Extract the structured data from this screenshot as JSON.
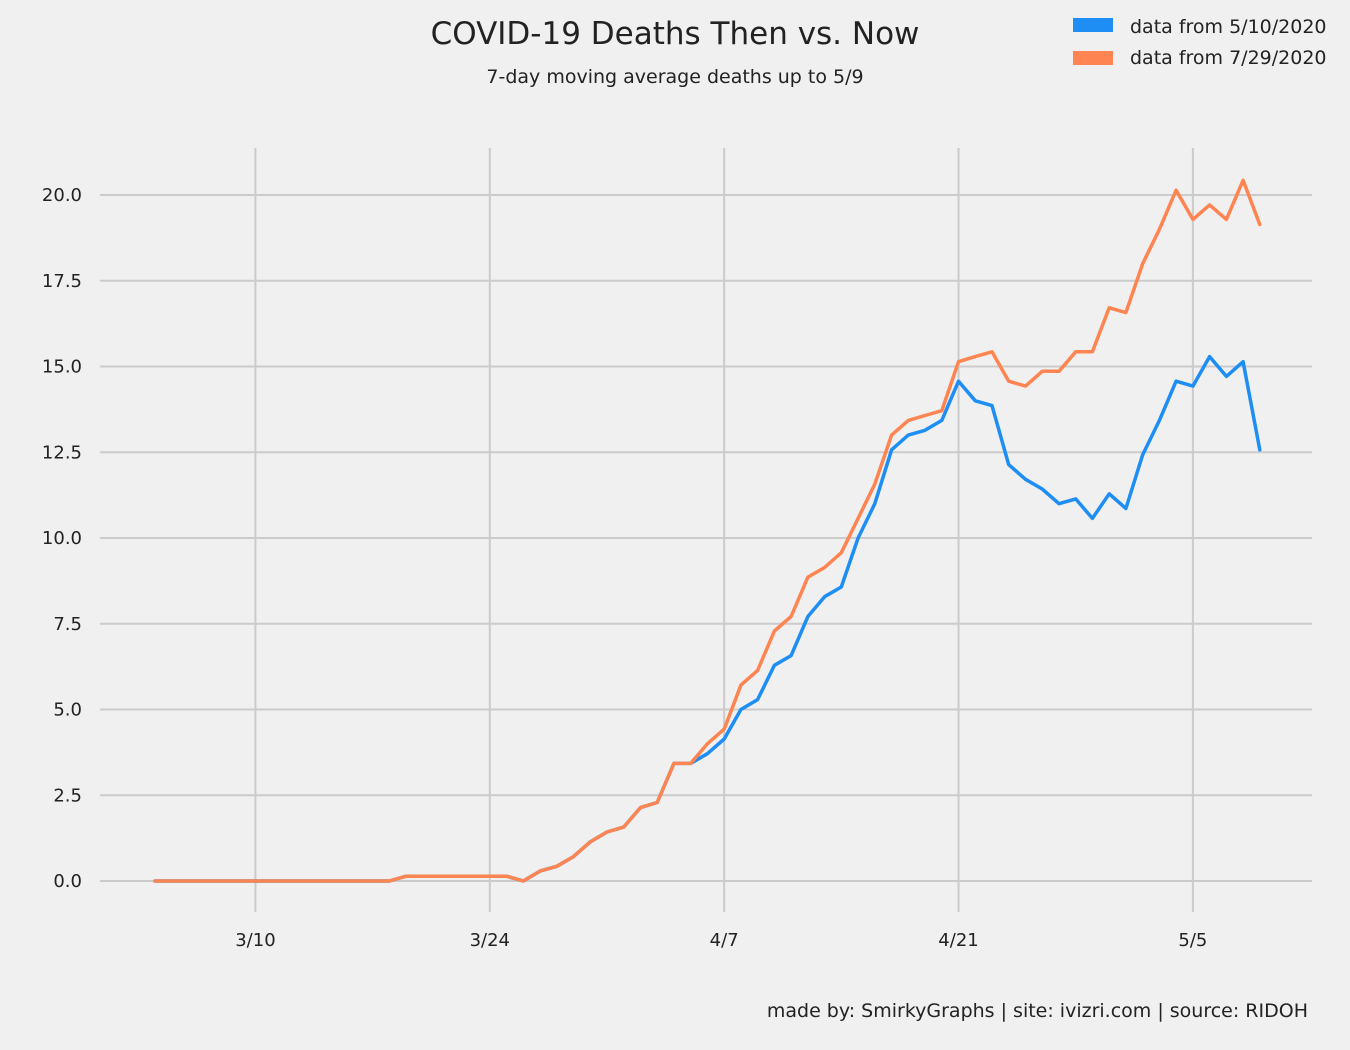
{
  "chart_data": {
    "type": "line",
    "title": "COVID-19 Deaths Then vs. Now",
    "subtitle": "7-day moving average deaths up to 5/9",
    "footer": "made by: SmirkyGraphs  |  site: ivizri.com  |  source: RIDOH",
    "x": [
      "3/4",
      "3/5",
      "3/6",
      "3/7",
      "3/8",
      "3/9",
      "3/10",
      "3/11",
      "3/12",
      "3/13",
      "3/14",
      "3/15",
      "3/16",
      "3/17",
      "3/18",
      "3/19",
      "3/20",
      "3/21",
      "3/22",
      "3/23",
      "3/24",
      "3/25",
      "3/26",
      "3/27",
      "3/28",
      "3/29",
      "3/30",
      "3/31",
      "4/1",
      "4/2",
      "4/3",
      "4/4",
      "4/5",
      "4/6",
      "4/7",
      "4/8",
      "4/9",
      "4/10",
      "4/11",
      "4/12",
      "4/13",
      "4/14",
      "4/15",
      "4/16",
      "4/17",
      "4/18",
      "4/19",
      "4/20",
      "4/21",
      "4/22",
      "4/23",
      "4/24",
      "4/25",
      "4/26",
      "4/27",
      "4/28",
      "4/29",
      "4/30",
      "5/1",
      "5/2",
      "5/3",
      "5/4",
      "5/5",
      "5/6",
      "5/7",
      "5/8",
      "5/9"
    ],
    "x_ticks": [
      "3/10",
      "3/24",
      "4/7",
      "4/21",
      "5/5"
    ],
    "y_ticks": [
      "0.0",
      "2.5",
      "5.0",
      "7.5",
      "10.0",
      "12.5",
      "15.0",
      "17.5",
      "20.0"
    ],
    "ylim": [
      -1.0,
      21.4
    ],
    "grid": true,
    "legend_position": "top-right",
    "series": [
      {
        "name": "data from 5/10/2020",
        "color": "#1e8ef4",
        "values": [
          0,
          0,
          0,
          0,
          0,
          0,
          0,
          0,
          0,
          0,
          0,
          0,
          0,
          0,
          0,
          0.14,
          0.14,
          0.14,
          0.14,
          0.14,
          0.14,
          0.14,
          0,
          0.29,
          0.43,
          0.71,
          1.14,
          1.43,
          1.57,
          2.14,
          2.29,
          3.43,
          3.43,
          3.71,
          4.14,
          5.0,
          5.29,
          6.29,
          6.57,
          7.71,
          8.29,
          8.57,
          10.0,
          11.0,
          12.57,
          13.0,
          13.14,
          13.43,
          14.57,
          14.0,
          13.86,
          12.14,
          11.71,
          11.43,
          11.0,
          11.14,
          10.57,
          11.29,
          10.86,
          12.43,
          13.43,
          14.57,
          14.43,
          15.29,
          14.71,
          15.14,
          12.57
        ]
      },
      {
        "name": "data from 7/29/2020",
        "color": "#fe8451",
        "values": [
          0,
          0,
          0,
          0,
          0,
          0,
          0,
          0,
          0,
          0,
          0,
          0,
          0,
          0,
          0,
          0.14,
          0.14,
          0.14,
          0.14,
          0.14,
          0.14,
          0.14,
          0,
          0.29,
          0.43,
          0.71,
          1.14,
          1.43,
          1.57,
          2.14,
          2.29,
          3.43,
          3.43,
          4.0,
          4.43,
          5.71,
          6.14,
          7.29,
          7.71,
          8.86,
          9.14,
          9.57,
          10.57,
          11.57,
          13.0,
          13.43,
          13.57,
          13.71,
          15.14,
          15.29,
          15.43,
          14.57,
          14.43,
          14.86,
          14.86,
          15.43,
          15.43,
          16.71,
          16.57,
          18.0,
          19.0,
          20.14,
          19.29,
          19.71,
          19.29,
          20.43,
          19.14
        ]
      }
    ]
  }
}
